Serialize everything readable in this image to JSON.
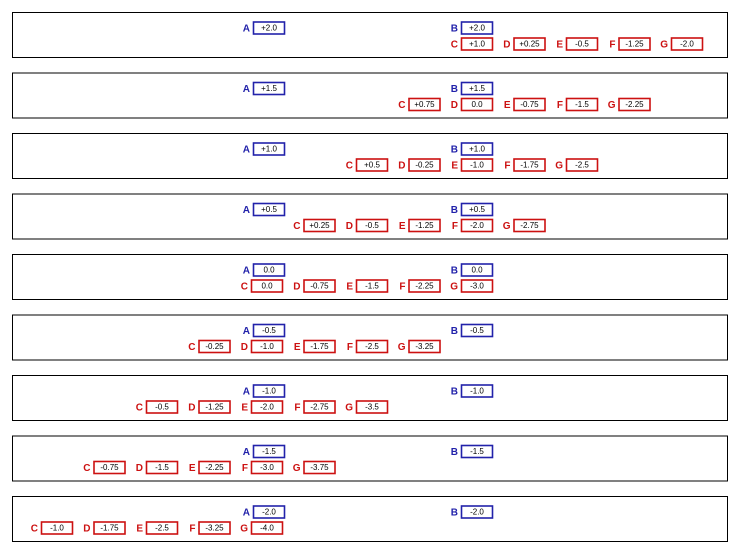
{
  "rows": [
    {
      "items": [
        {
          "letter": "A",
          "value": "+2.0"
        },
        {
          "letter": "B",
          "value": "+2.0"
        },
        {
          "letter": "C",
          "value": "+1.0"
        },
        {
          "letter": "D",
          "value": "+0.25"
        },
        {
          "letter": "E",
          "value": "-0.5"
        },
        {
          "letter": "F",
          "value": "-1.25"
        },
        {
          "letter": "G",
          "value": "-2.0"
        }
      ]
    },
    {
      "items": [
        {
          "letter": "A",
          "value": "+1.5"
        },
        {
          "letter": "B",
          "value": "+1.5"
        },
        {
          "letter": "C",
          "value": "+0.75"
        },
        {
          "letter": "D",
          "value": "0.0"
        },
        {
          "letter": "E",
          "value": "-0.75"
        },
        {
          "letter": "F",
          "value": "-1.5"
        },
        {
          "letter": "G",
          "value": "-2.25"
        }
      ]
    },
    {
      "items": [
        {
          "letter": "A",
          "value": "+1.0"
        },
        {
          "letter": "B",
          "value": "+1.0"
        },
        {
          "letter": "C",
          "value": "+0.5"
        },
        {
          "letter": "D",
          "value": "-0.25"
        },
        {
          "letter": "E",
          "value": "-1.0"
        },
        {
          "letter": "F",
          "value": "-1.75"
        },
        {
          "letter": "G",
          "value": "-2.5"
        }
      ]
    },
    {
      "items": [
        {
          "letter": "A",
          "value": "+0.5"
        },
        {
          "letter": "B",
          "value": "+0.5"
        },
        {
          "letter": "C",
          "value": "+0.25"
        },
        {
          "letter": "D",
          "value": "-0.5"
        },
        {
          "letter": "E",
          "value": "-1.25"
        },
        {
          "letter": "F",
          "value": "-2.0"
        },
        {
          "letter": "G",
          "value": "-2.75"
        }
      ]
    },
    {
      "items": [
        {
          "letter": "A",
          "value": "0.0"
        },
        {
          "letter": "B",
          "value": "0.0"
        },
        {
          "letter": "C",
          "value": "0.0"
        },
        {
          "letter": "D",
          "value": "-0.75"
        },
        {
          "letter": "E",
          "value": "-1.5"
        },
        {
          "letter": "F",
          "value": "-2.25"
        },
        {
          "letter": "G",
          "value": "-3.0"
        }
      ]
    },
    {
      "items": [
        {
          "letter": "A",
          "value": "-0.5"
        },
        {
          "letter": "B",
          "value": "-0.5"
        },
        {
          "letter": "C",
          "value": "-0.25"
        },
        {
          "letter": "D",
          "value": "-1.0"
        },
        {
          "letter": "E",
          "value": "-1.75"
        },
        {
          "letter": "F",
          "value": "-2.5"
        },
        {
          "letter": "G",
          "value": "-3.25"
        }
      ]
    },
    {
      "items": [
        {
          "letter": "A",
          "value": "-1.0"
        },
        {
          "letter": "B",
          "value": "-1.0"
        },
        {
          "letter": "C",
          "value": "-0.5"
        },
        {
          "letter": "D",
          "value": "-1.25"
        },
        {
          "letter": "E",
          "value": "-2.0"
        },
        {
          "letter": "F",
          "value": "-2.75"
        },
        {
          "letter": "G",
          "value": "-3.5"
        }
      ]
    },
    {
      "items": [
        {
          "letter": "A",
          "value": "-1.5"
        },
        {
          "letter": "B",
          "value": "-1.5"
        },
        {
          "letter": "C",
          "value": "-0.75"
        },
        {
          "letter": "D",
          "value": "-1.5"
        },
        {
          "letter": "E",
          "value": "-2.25"
        },
        {
          "letter": "F",
          "value": "-3.0"
        },
        {
          "letter": "G",
          "value": "-3.75"
        }
      ]
    },
    {
      "items": [
        {
          "letter": "A",
          "value": "-2.0"
        },
        {
          "letter": "B",
          "value": "-2.0"
        },
        {
          "letter": "C",
          "value": "-1.0"
        },
        {
          "letter": "D",
          "value": "-1.75"
        },
        {
          "letter": "E",
          "value": "-2.5"
        },
        {
          "letter": "F",
          "value": "-3.25"
        },
        {
          "letter": "G",
          "value": "-4.0"
        }
      ]
    }
  ]
}
